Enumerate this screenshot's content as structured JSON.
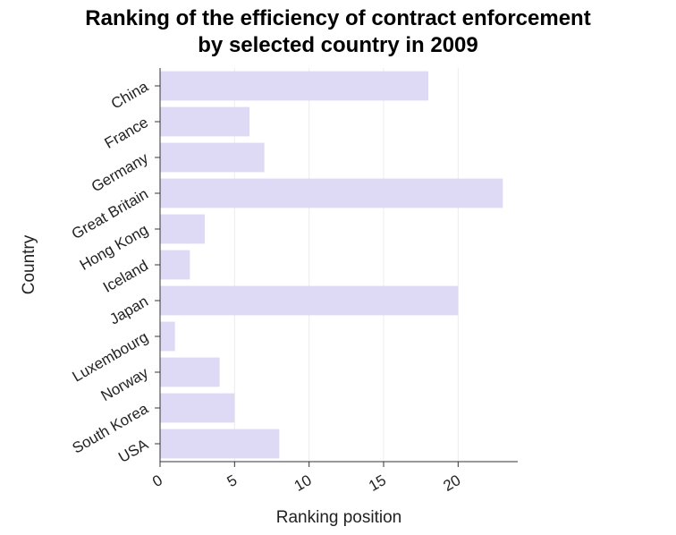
{
  "chart_data": {
    "type": "bar",
    "orientation": "horizontal",
    "title": "Ranking of the efficiency of contract enforcement by selected country in 2009",
    "title_lines": [
      "Ranking of the efficiency of contract enforcement",
      "by selected country in 2009"
    ],
    "xlabel": "Ranking position",
    "ylabel": "Country",
    "categories": [
      "China",
      "France",
      "Germany",
      "Great Britain",
      "Hong Kong",
      "Iceland",
      "Japan",
      "Luxembourg",
      "Norway",
      "South Korea",
      "USA"
    ],
    "values": [
      18,
      6,
      7,
      23,
      3,
      2,
      20,
      1,
      4,
      5,
      8
    ],
    "xlim": [
      0,
      24
    ],
    "xticks": [
      0,
      5,
      10,
      15,
      20
    ],
    "grid": true,
    "bar_color": "#dedaf5",
    "grid_color": "#ececec"
  }
}
